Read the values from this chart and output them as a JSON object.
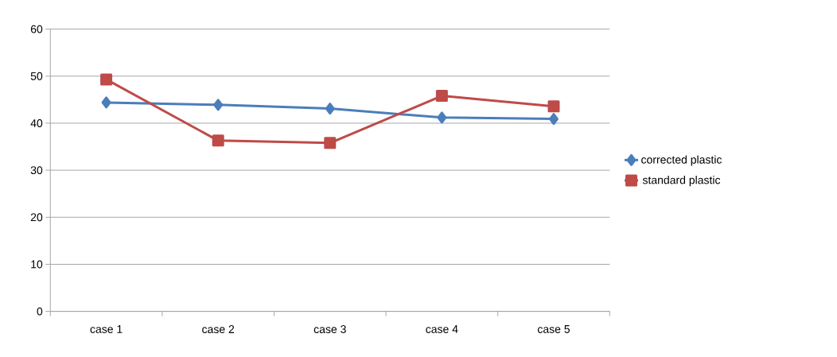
{
  "chart_data": {
    "type": "line",
    "categories": [
      "case 1",
      "case 2",
      "case 3",
      "case 4",
      "case 5"
    ],
    "series": [
      {
        "name": "corrected plastic",
        "color": "#4a7ebb",
        "marker": "diamond",
        "values": [
          44.4,
          43.9,
          43.1,
          41.2,
          40.9
        ]
      },
      {
        "name": "standard plastic",
        "color": "#be4b48",
        "marker": "square",
        "values": [
          49.3,
          36.3,
          35.8,
          45.8,
          43.6
        ]
      }
    ],
    "ylim": [
      0,
      60
    ],
    "yticks": [
      0,
      10,
      20,
      30,
      40,
      50,
      60
    ],
    "grid": "y",
    "legend": "right",
    "line_style": "solid"
  }
}
